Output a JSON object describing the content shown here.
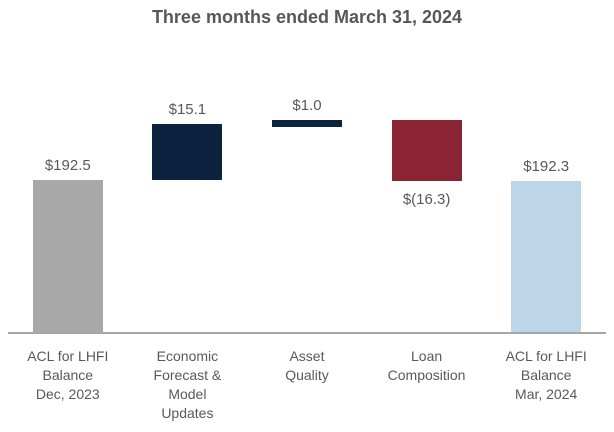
{
  "chart_data": {
    "type": "bar",
    "subtype": "waterfall",
    "title": "Three months ended March 31, 2024",
    "categories": [
      "ACL for LHFI Balance Dec, 2023",
      "Economic Forecast & Model Updates",
      "Asset Quality",
      "Loan Composition",
      "ACL for LHFI Balance Mar, 2024"
    ],
    "category_lines": [
      [
        "ACL for LHFI",
        "Balance",
        "Dec, 2023"
      ],
      [
        "Economic",
        "Forecast &",
        "Model",
        "Updates"
      ],
      [
        "Asset",
        "Quality"
      ],
      [
        "Loan",
        "Composition"
      ],
      [
        "ACL for LHFI",
        "Balance",
        "Mar, 2024"
      ]
    ],
    "values": [
      192.5,
      15.1,
      1.0,
      -16.3,
      192.3
    ],
    "value_labels": [
      "$192.5",
      "$15.1",
      "$1.0",
      "$(16.3)",
      "$192.3"
    ],
    "bar_roles": [
      "start_total",
      "increase",
      "increase",
      "decrease",
      "end_total"
    ],
    "bar_colors": [
      "#a8a8a8",
      "#0c2340",
      "#0c2340",
      "#8b2432",
      "#bcd6e8"
    ],
    "value_label_positions": [
      "above",
      "above",
      "above",
      "below",
      "above"
    ],
    "ylim": [
      152,
      215
    ],
    "xlabel": "",
    "ylabel": "",
    "grid": false,
    "legend": "none",
    "colors": {
      "start_bar": "#a8a8a8",
      "increase_bar": "#0c2340",
      "decrease_bar": "#8b2432",
      "end_bar": "#bcd6e8",
      "axis_line": "#a6a6a6",
      "label_text": "#595959",
      "title_text": "#575757",
      "background": "#ffffff"
    }
  }
}
